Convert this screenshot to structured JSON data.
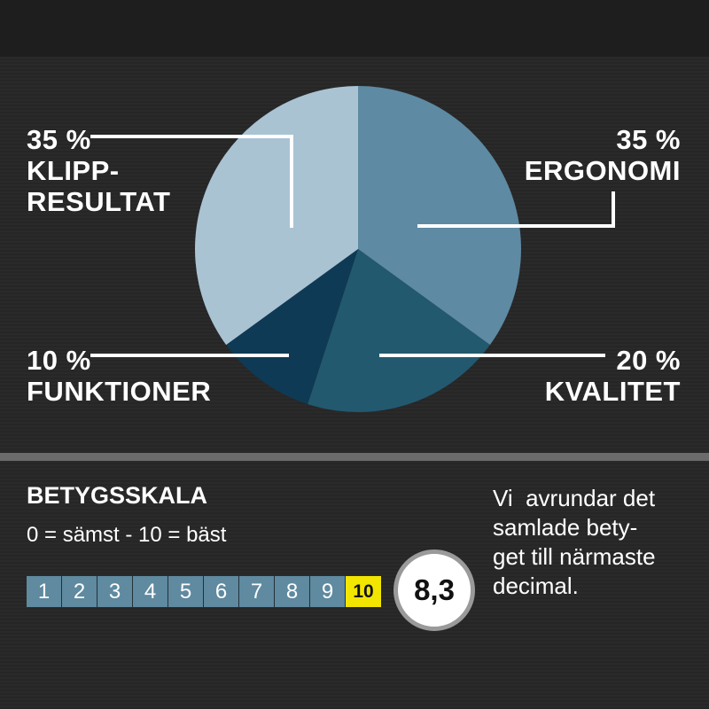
{
  "chart_data": {
    "type": "pie",
    "slices": [
      {
        "label_lines": [
          "35 %",
          "ERGONOMI"
        ],
        "value": 35,
        "color": "#5e8aa3"
      },
      {
        "label_lines": [
          "20 %",
          "KVALITET"
        ],
        "value": 20,
        "color": "#22596f"
      },
      {
        "label_lines": [
          "10 %",
          "FUNKTIONER"
        ],
        "value": 10,
        "color": "#0f3a55"
      },
      {
        "label_lines": [
          "35 %",
          "KLIPP-",
          "RESULTAT"
        ],
        "value": 35,
        "color": "#a9c3d3"
      }
    ],
    "start": "12 o'clock",
    "direction": "clockwise"
  },
  "rating_scale": {
    "title": "BETYGSSKALA",
    "subtitle": "0 = sämst - 10 = bäst",
    "steps": [
      "1",
      "2",
      "3",
      "4",
      "5",
      "6",
      "7",
      "8",
      "9",
      "10"
    ],
    "highlighted_step": "10",
    "cell_color": "#5f8aa0",
    "highlight_color": "#f2e500"
  },
  "score": "8,3",
  "note_lines": [
    "Vi  avrundar det",
    "samlade bety-",
    "get till närmaste",
    "decimal."
  ]
}
